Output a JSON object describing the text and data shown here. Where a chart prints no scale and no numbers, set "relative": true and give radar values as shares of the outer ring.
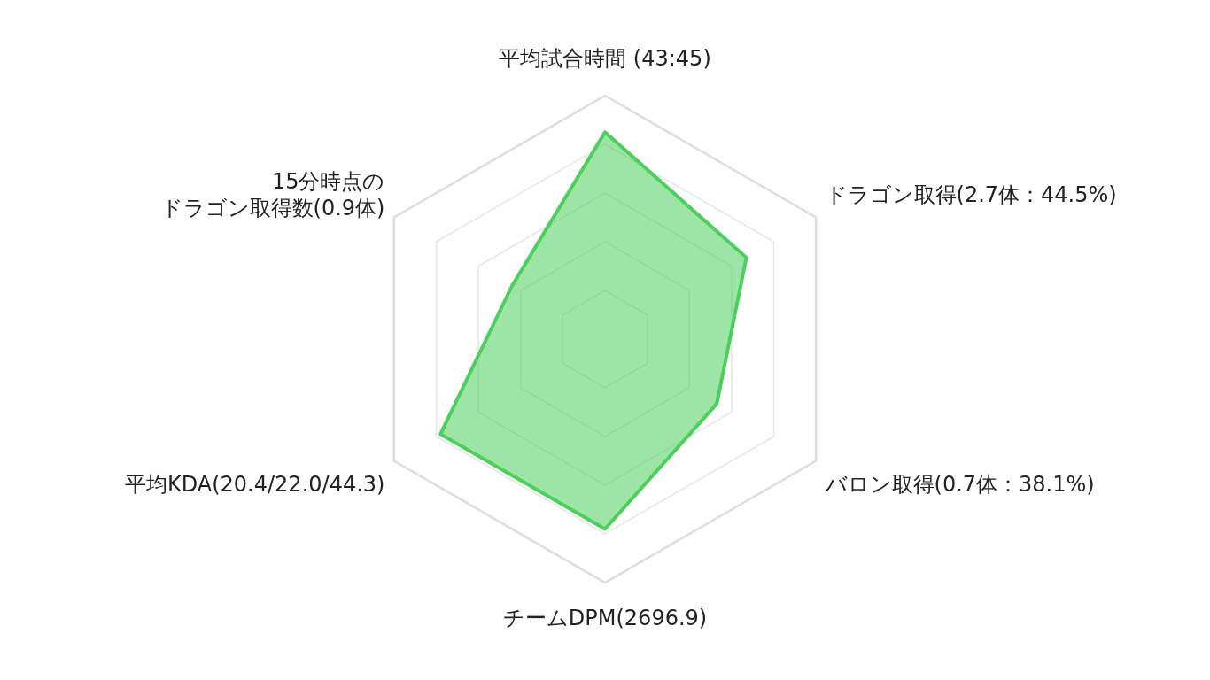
{
  "chart_data": {
    "type": "radar",
    "relative": true,
    "grid": true,
    "categories": [
      "平均試合時間 (43:45)",
      "ドラゴン取得(2.7体：44.5%)",
      "バロン取得(0.7体：38.1%)",
      "チームDPM(2696.9)",
      "平均KDA(20.4/22.0/44.3)",
      "15分時点のドラゴン取得数(0.9体)"
    ],
    "series": [
      {
        "color": "#4ccf5c",
        "values": [
          0.85,
          0.67,
          0.53,
          0.78,
          0.78,
          0.44
        ]
      }
    ]
  }
}
